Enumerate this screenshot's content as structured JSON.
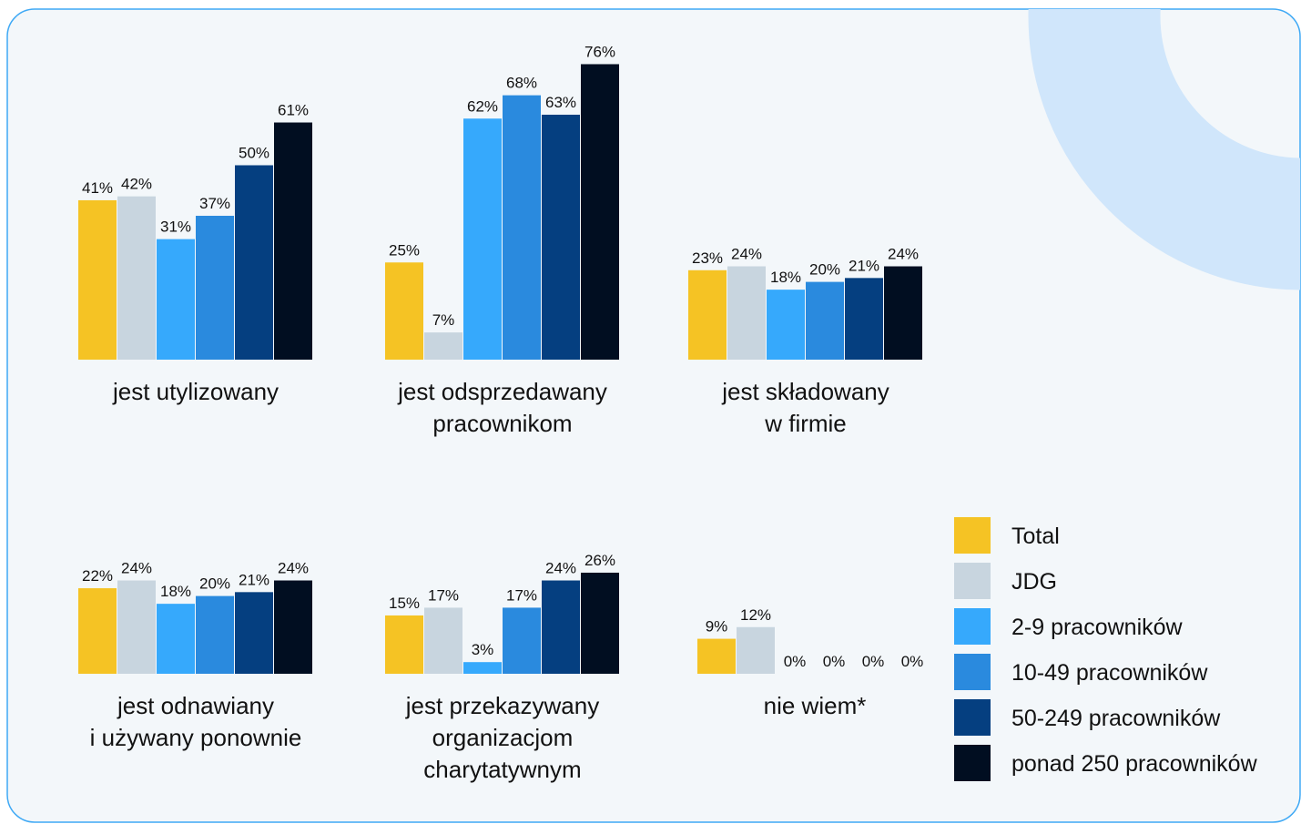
{
  "chart_data": {
    "type": "bar",
    "categories": [
      "jest utylizowany",
      "jest odsprzedawany\npracownikom",
      "jest składowany\nw firmie",
      "jest odnawiany\ni używany ponownie",
      "jest przekazywany\norganizacjom\ncharytatywnym",
      "nie wiem*"
    ],
    "series": [
      {
        "name": "Total",
        "color": "#f5c324",
        "values": [
          41,
          25,
          23,
          22,
          15,
          9
        ],
        "value_labels": [
          "41%",
          "25%",
          "23%",
          "22%",
          "15%",
          "9%"
        ]
      },
      {
        "name": "JDG",
        "color": "#c8d5df",
        "values": [
          42,
          7,
          24,
          24,
          17,
          12
        ],
        "value_labels": [
          "42%",
          "7%",
          "24%",
          "24%",
          "17%",
          "12%"
        ]
      },
      {
        "name": "2-9 pracowników",
        "color": "#36a9fc",
        "values": [
          31,
          62,
          18,
          18,
          3,
          0
        ],
        "value_labels": [
          "31%",
          "62%",
          "18%",
          "18%",
          "3%",
          "0%"
        ]
      },
      {
        "name": "10-49 pracowników",
        "color": "#2a8ade",
        "values": [
          37,
          68,
          20,
          20,
          17,
          0
        ],
        "value_labels": [
          "37%",
          "68%",
          "20%",
          "20%",
          "17%",
          "0%"
        ]
      },
      {
        "name": "50-249 pracowników",
        "color": "#053f80",
        "values": [
          50,
          63,
          21,
          21,
          24,
          0
        ],
        "value_labels": [
          "50%",
          "63%",
          "21%",
          "21%",
          "24%",
          "0%"
        ]
      },
      {
        "name": "ponad 250 pracowników",
        "color": "#010e21",
        "values": [
          61,
          76,
          24,
          24,
          26,
          0
        ],
        "value_labels": [
          "61%",
          "76%",
          "24%",
          "24%",
          "26%",
          "0%"
        ]
      }
    ],
    "legend": "right"
  }
}
